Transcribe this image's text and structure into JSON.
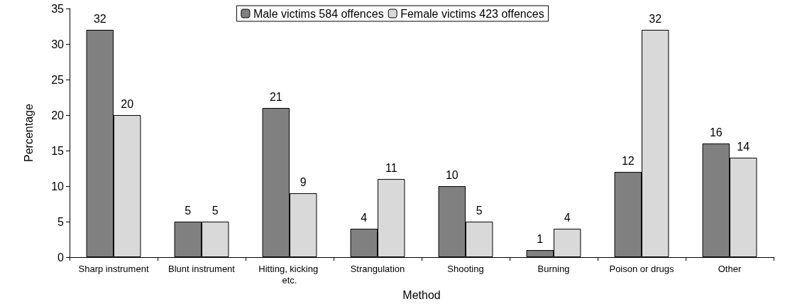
{
  "chart_data": {
    "type": "bar",
    "xlabel": "Method",
    "ylabel": "Percentage",
    "categories": [
      "Sharp instrument",
      "Blunt instrument",
      "Hitting, kicking etc.",
      "Strangulation",
      "Shooting",
      "Burning",
      "Poison or drugs",
      "Other"
    ],
    "series": [
      {
        "name": "Male victims 584 offences",
        "color": "#808080",
        "values": [
          32,
          5,
          21,
          4,
          10,
          1,
          12,
          16
        ]
      },
      {
        "name": "Female victims 423 offences",
        "color": "#d9d9d9",
        "values": [
          20,
          5,
          9,
          11,
          5,
          4,
          32,
          14
        ]
      }
    ],
    "ylim": [
      0,
      35
    ],
    "yticks": [
      0,
      5,
      10,
      15,
      20,
      25,
      30,
      35
    ],
    "grid": false,
    "legend": "top",
    "data_labels": true
  }
}
